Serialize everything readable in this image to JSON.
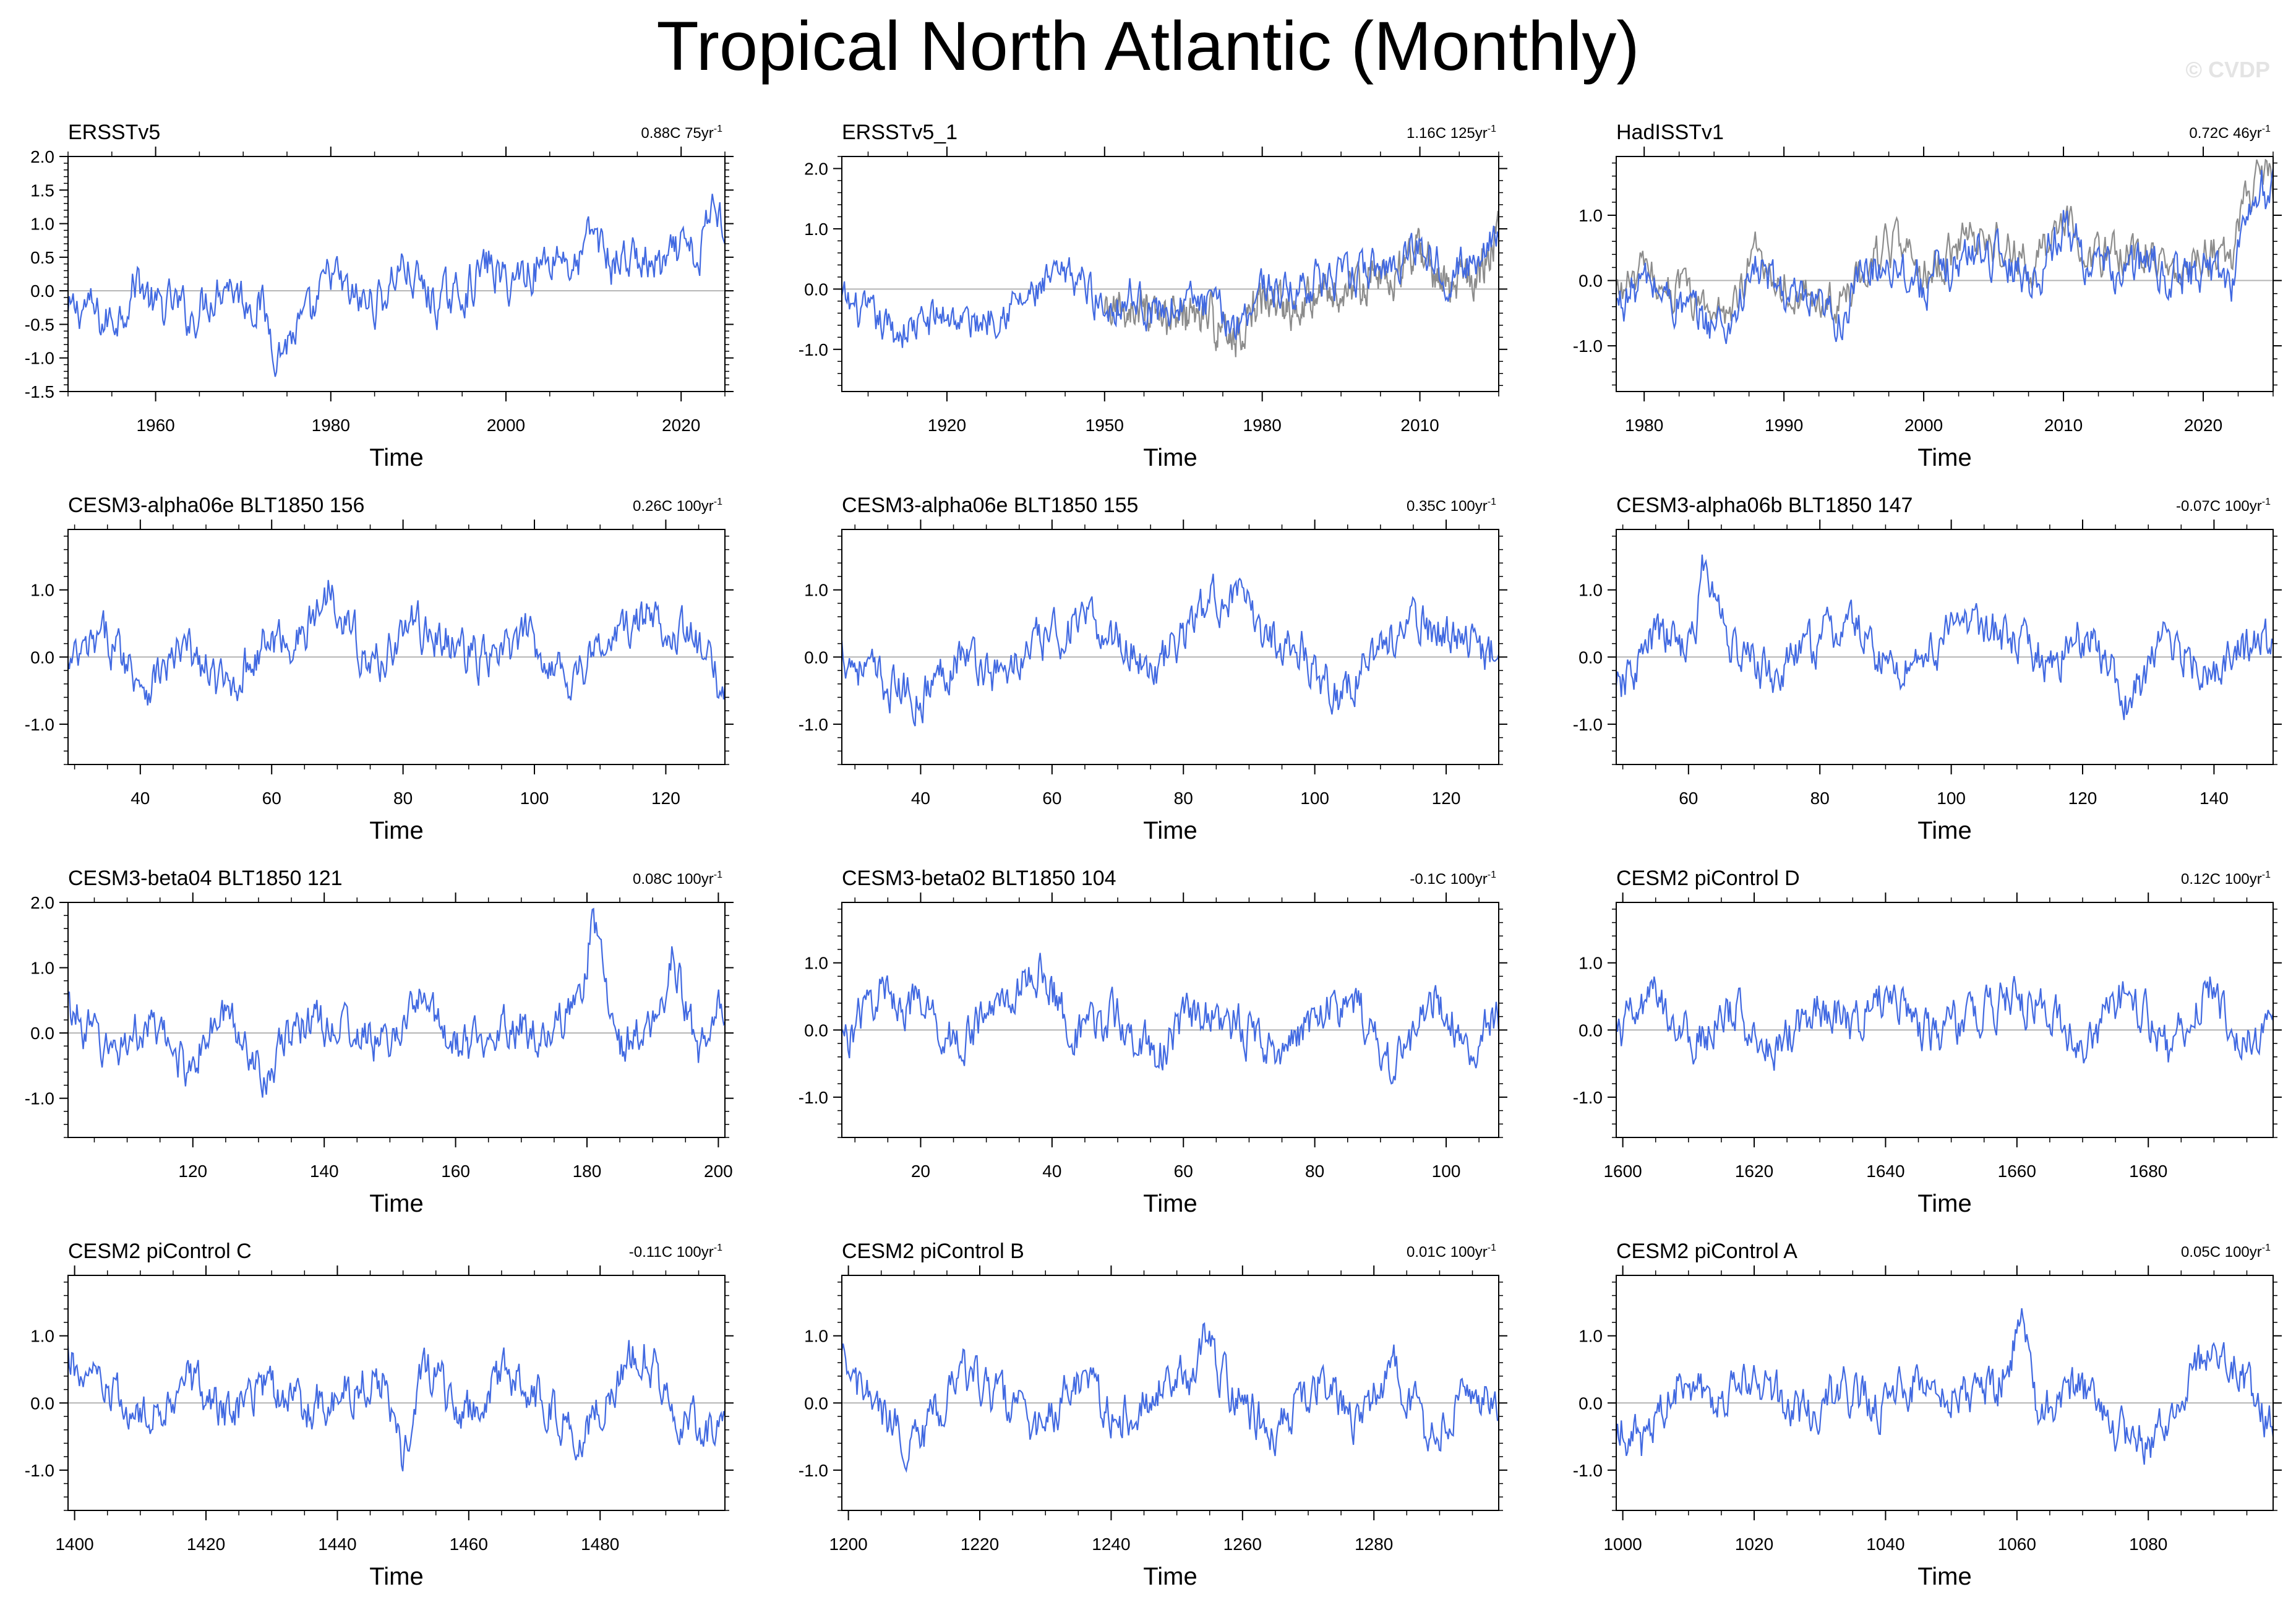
{
  "title": "Tropical North Atlantic (Monthly)",
  "credit": "© CVDP",
  "colors": {
    "model": "#4169E1",
    "obs_ref": "#8c8c8c",
    "zero_line": "#b4b4b4",
    "axes": "#000000"
  },
  "chart_data": [
    {
      "type": "line",
      "title": "ERSSTv5",
      "trend_value": "0.88C 75yr",
      "trend_exp": "-1",
      "xlabel": "Time",
      "ylabel": "",
      "xlim": [
        1950,
        2025
      ],
      "ylim": [
        -1.5,
        2.0
      ],
      "xticks": [
        1960,
        1980,
        2000,
        2020
      ],
      "yticks": [
        -1.5,
        -1.0,
        -0.5,
        0.0,
        0.5,
        1.0,
        1.5,
        2.0
      ],
      "ytick_labels": [
        "-1.5",
        "-1.0",
        "-0.5",
        "0.0",
        "0.5",
        "1.0",
        "1.5",
        "2.0"
      ],
      "series": [
        {
          "x": [
            1950,
            1952,
            1954,
            1956,
            1958,
            1960,
            1962,
            1964,
            1966,
            1968,
            1970,
            1972,
            1974,
            1976,
            1978,
            1980,
            1982,
            1984,
            1986,
            1988,
            1990,
            1992,
            1994,
            1996,
            1998,
            2000,
            2002,
            2004,
            2006,
            2008,
            2010,
            2012,
            2014,
            2016,
            2018,
            2020,
            2022,
            2023,
            2024,
            2025
          ],
          "y": [
            -0.4,
            -0.2,
            -0.5,
            -0.3,
            0.2,
            -0.3,
            -0.2,
            -0.4,
            -0.1,
            0.2,
            -0.1,
            -0.2,
            -0.9,
            -0.6,
            -0.4,
            0.3,
            -0.1,
            -0.2,
            -0.1,
            0.4,
            0.1,
            -0.2,
            -0.1,
            0.1,
            0.4,
            0.1,
            0.3,
            0.4,
            0.6,
            0.3,
            0.9,
            0.4,
            0.5,
            0.4,
            0.3,
            0.6,
            0.4,
            1.0,
            1.4,
            0.9
          ]
        }
      ]
    },
    {
      "type": "line",
      "title": "ERSSTv5_1",
      "trend_value": "1.16C 125yr",
      "trend_exp": "-1",
      "xlabel": "Time",
      "ylabel": "",
      "xlim": [
        1900,
        2025
      ],
      "ylim": [
        -1.7,
        2.2
      ],
      "xticks": [
        1920,
        1950,
        1980,
        2010
      ],
      "yticks": [
        -1.0,
        0.0,
        1.0,
        2.0
      ],
      "ytick_labels": [
        "-1.0",
        "0.0",
        "1.0",
        "2.0"
      ],
      "series": [
        {
          "x": [
            1900,
            1905,
            1910,
            1915,
            1920,
            1925,
            1930,
            1935,
            1940,
            1945,
            1950,
            1955,
            1960,
            1965,
            1970,
            1975,
            1980,
            1985,
            1990,
            1995,
            2000,
            2005,
            2010,
            2015,
            2020,
            2025
          ],
          "y": [
            -0.2,
            -0.5,
            -0.7,
            -0.6,
            -0.4,
            -0.6,
            -0.3,
            -0.2,
            0.1,
            0.2,
            -0.3,
            -0.1,
            -0.4,
            -0.2,
            -0.3,
            -0.6,
            0.1,
            -0.1,
            0.2,
            0.1,
            0.3,
            0.4,
            0.8,
            0.3,
            0.4,
            1.1
          ]
        },
        {
          "x": [
            1950,
            1955,
            1960,
            1965,
            1970,
            1975,
            1980,
            1985,
            1990,
            1995,
            2000,
            2005,
            2010,
            2015,
            2020,
            2025
          ],
          "y": [
            -0.5,
            -0.3,
            -0.6,
            -0.4,
            -0.5,
            -0.8,
            -0.1,
            -0.3,
            0.0,
            -0.1,
            0.1,
            0.2,
            0.6,
            0.1,
            0.2,
            0.9
          ]
        }
      ]
    },
    {
      "type": "line",
      "title": "HadISSTv1",
      "trend_value": "0.72C 46yr",
      "trend_exp": "-1",
      "xlabel": "Time",
      "ylabel": "",
      "xlim": [
        1978,
        2025
      ],
      "ylim": [
        -1.7,
        1.9
      ],
      "xticks": [
        1980,
        1990,
        2000,
        2010,
        2020
      ],
      "yticks": [
        -1.0,
        0.0,
        1.0
      ],
      "ytick_labels": [
        "-1.0",
        "0.0",
        "1.0"
      ],
      "series": [
        {
          "x": [
            1978,
            1980,
            1982,
            1984,
            1986,
            1988,
            1990,
            1992,
            1994,
            1996,
            1998,
            2000,
            2002,
            2004,
            2006,
            2008,
            2010,
            2012,
            2014,
            2016,
            2018,
            2020,
            2022,
            2023,
            2024,
            2025
          ],
          "y": [
            -0.4,
            0.0,
            -0.3,
            -0.6,
            -0.7,
            0.2,
            -0.2,
            -0.5,
            -0.6,
            0.2,
            0.3,
            -0.1,
            0.2,
            0.5,
            0.3,
            0.0,
            0.9,
            0.2,
            0.1,
            0.3,
            0.0,
            0.2,
            0.0,
            0.9,
            1.4,
            1.3
          ]
        },
        {
          "x": [
            1978,
            1980,
            1982,
            1984,
            1986,
            1988,
            1990,
            1992,
            1994,
            1996,
            1998,
            2000,
            2002,
            2004,
            2006,
            2008,
            2010,
            2012,
            2014,
            2016,
            2018,
            2020,
            2022,
            2023,
            2024,
            2025
          ],
          "y": [
            -0.2,
            0.1,
            -0.1,
            -0.4,
            -0.5,
            0.4,
            0.0,
            -0.3,
            -0.4,
            0.3,
            0.5,
            0.1,
            0.4,
            0.7,
            0.5,
            0.2,
            1.1,
            0.4,
            0.3,
            0.5,
            0.2,
            0.5,
            0.3,
            1.2,
            1.6,
            1.5
          ]
        }
      ]
    },
    {
      "type": "line",
      "title": "CESM3-alpha06e BLT1850 156",
      "trend_value": "0.26C 100yr",
      "trend_exp": "-1",
      "xlabel": "Time",
      "ylabel": "",
      "xlim": [
        29,
        129
      ],
      "ylim": [
        -1.6,
        1.9
      ],
      "xticks": [
        40,
        60,
        80,
        100,
        120
      ],
      "yticks": [
        -1.0,
        0.0,
        1.0
      ],
      "ytick_labels": [
        "-1.0",
        "0.0",
        "1.0"
      ],
      "series": [
        {
          "x": [
            29,
            35,
            41,
            47,
            53,
            59,
            65,
            69,
            75,
            81,
            87,
            93,
            99,
            105,
            111,
            117,
            123,
            129
          ],
          "y": [
            -0.2,
            0.3,
            -0.4,
            0.1,
            -0.5,
            0.2,
            0.3,
            1.1,
            -0.2,
            0.5,
            0.2,
            -0.1,
            0.3,
            -0.3,
            0.2,
            0.6,
            0.4,
            -0.5
          ]
        }
      ]
    },
    {
      "type": "line",
      "title": "CESM3-alpha06e BLT1850 155",
      "trend_value": "0.35C 100yr",
      "trend_exp": "-1",
      "xlabel": "Time",
      "ylabel": "",
      "xlim": [
        28,
        128
      ],
      "ylim": [
        -1.6,
        1.9
      ],
      "xticks": [
        40,
        60,
        80,
        100,
        120
      ],
      "yticks": [
        -1.0,
        0.0,
        1.0
      ],
      "ytick_labels": [
        "-1.0",
        "0.0",
        "1.0"
      ],
      "series": [
        {
          "x": [
            28,
            34,
            40,
            46,
            52,
            58,
            64,
            70,
            76,
            82,
            87,
            92,
            98,
            104,
            110,
            116,
            122,
            128
          ],
          "y": [
            0.1,
            -0.4,
            -0.6,
            0.1,
            -0.3,
            0.2,
            0.5,
            0.3,
            -0.2,
            0.6,
            1.0,
            0.4,
            0.1,
            -0.6,
            0.2,
            0.5,
            0.3,
            0.0
          ]
        }
      ]
    },
    {
      "type": "line",
      "title": "CESM3-alpha06b BLT1850 147",
      "trend_value": "-0.07C 100yr",
      "trend_exp": "-1",
      "xlabel": "Time",
      "ylabel": "",
      "xlim": [
        49,
        149
      ],
      "ylim": [
        -1.6,
        1.9
      ],
      "xticks": [
        60,
        80,
        100,
        120,
        140
      ],
      "yticks": [
        -1.0,
        0.0,
        1.0
      ],
      "ytick_labels": [
        "-1.0",
        "0.0",
        "1.0"
      ],
      "series": [
        {
          "x": [
            49,
            55,
            61,
            62,
            67,
            73,
            79,
            85,
            91,
            97,
            103,
            109,
            115,
            121,
            127,
            133,
            139,
            145,
            149
          ],
          "y": [
            -0.6,
            0.3,
            0.2,
            1.4,
            0.1,
            -0.3,
            0.2,
            0.5,
            -0.2,
            0.1,
            0.6,
            0.2,
            -0.1,
            0.4,
            -0.7,
            0.3,
            -0.2,
            0.1,
            0.2
          ]
        }
      ]
    },
    {
      "type": "line",
      "title": "CESM3-beta04 BLT1850 121",
      "trend_value": "0.08C 100yr",
      "trend_exp": "-1",
      "xlabel": "Time",
      "ylabel": "",
      "xlim": [
        101,
        201
      ],
      "ylim": [
        -1.6,
        2.0
      ],
      "xticks": [
        120,
        140,
        160,
        180,
        200
      ],
      "yticks": [
        -1.0,
        0.0,
        1.0,
        2.0
      ],
      "ytick_labels": [
        "-1.0",
        "0.0",
        "1.0",
        "2.0"
      ],
      "series": [
        {
          "x": [
            101,
            107,
            113,
            119,
            125,
            131,
            137,
            143,
            149,
            155,
            161,
            167,
            173,
            179,
            181,
            185,
            191,
            193,
            197,
            201
          ],
          "y": [
            0.4,
            -0.3,
            0.1,
            -0.5,
            0.3,
            -0.6,
            0.2,
            0.1,
            -0.2,
            0.5,
            -0.3,
            0.2,
            0.0,
            0.4,
            1.8,
            -0.2,
            0.1,
            1.2,
            -0.3,
            0.5
          ]
        }
      ]
    },
    {
      "type": "line",
      "title": "CESM3-beta02 BLT1850 104",
      "trend_value": "-0.1C 100yr",
      "trend_exp": "-1",
      "xlabel": "Time",
      "ylabel": "",
      "xlim": [
        8,
        108
      ],
      "ylim": [
        -1.6,
        1.9
      ],
      "xticks": [
        20,
        40,
        60,
        80,
        100
      ],
      "yticks": [
        -1.0,
        0.0,
        1.0
      ],
      "ytick_labels": [
        "-1.0",
        "0.0",
        "1.0"
      ],
      "series": [
        {
          "x": [
            8,
            14,
            20,
            26,
            32,
            38,
            44,
            50,
            56,
            62,
            68,
            74,
            80,
            86,
            92,
            98,
            104,
            108
          ],
          "y": [
            -0.2,
            0.6,
            0.3,
            -0.2,
            0.4,
            0.9,
            -0.1,
            0.2,
            -0.4,
            0.3,
            0.1,
            -0.3,
            0.2,
            0.4,
            -0.6,
            0.5,
            -0.2,
            0.2
          ]
        }
      ]
    },
    {
      "type": "line",
      "title": "CESM2 piControl D",
      "trend_value": "0.12C 100yr",
      "trend_exp": "-1",
      "xlabel": "Time",
      "ylabel": "",
      "xlim": [
        1599,
        1699
      ],
      "ylim": [
        -1.6,
        1.9
      ],
      "xticks": [
        1600,
        1620,
        1640,
        1660,
        1680
      ],
      "yticks": [
        -1.0,
        0.0,
        1.0
      ],
      "ytick_labels": [
        "-1.0",
        "0.0",
        "1.0"
      ],
      "series": [
        {
          "x": [
            1599,
            1605,
            1611,
            1617,
            1623,
            1629,
            1635,
            1641,
            1647,
            1653,
            1659,
            1665,
            1671,
            1677,
            1683,
            1689,
            1695,
            1699
          ],
          "y": [
            -0.1,
            0.5,
            -0.2,
            0.3,
            -0.3,
            0.4,
            0.1,
            0.6,
            -0.1,
            0.2,
            0.5,
            0.2,
            -0.2,
            0.6,
            -0.3,
            0.7,
            -0.2,
            -0.1
          ]
        }
      ]
    },
    {
      "type": "line",
      "title": "CESM2 piControl C",
      "trend_value": "-0.11C 100yr",
      "trend_exp": "-1",
      "xlabel": "Time",
      "ylabel": "",
      "xlim": [
        1399,
        1499
      ],
      "ylim": [
        -1.6,
        1.9
      ],
      "xticks": [
        1400,
        1420,
        1440,
        1460,
        1480
      ],
      "yticks": [
        -1.0,
        0.0,
        1.0
      ],
      "ytick_labels": [
        "-1.0",
        "0.0",
        "1.0"
      ],
      "series": [
        {
          "x": [
            1399,
            1405,
            1411,
            1417,
            1423,
            1429,
            1435,
            1441,
            1447,
            1450,
            1453,
            1459,
            1465,
            1471,
            1477,
            1483,
            1486,
            1492,
            1499
          ],
          "y": [
            0.6,
            0.1,
            -0.3,
            0.4,
            -0.2,
            0.3,
            -0.1,
            0.2,
            0.4,
            -0.9,
            0.7,
            -0.3,
            0.4,
            0.1,
            -0.5,
            0.3,
            0.9,
            -0.2,
            -0.5
          ]
        }
      ]
    },
    {
      "type": "line",
      "title": "CESM2 piControl B",
      "trend_value": "0.01C 100yr",
      "trend_exp": "-1",
      "xlabel": "Time",
      "ylabel": "",
      "xlim": [
        1199,
        1299
      ],
      "ylim": [
        -1.6,
        1.9
      ],
      "xticks": [
        1200,
        1220,
        1240,
        1260,
        1280
      ],
      "yticks": [
        -1.0,
        0.0,
        1.0
      ],
      "ytick_labels": [
        "-1.0",
        "0.0",
        "1.0"
      ],
      "series": [
        {
          "x": [
            1199,
            1205,
            1211,
            1217,
            1223,
            1229,
            1235,
            1241,
            1247,
            1253,
            1254,
            1259,
            1265,
            1271,
            1277,
            1283,
            1289,
            1295,
            1299
          ],
          "y": [
            0.5,
            -0.2,
            -0.6,
            0.5,
            0.1,
            -0.4,
            0.3,
            -0.3,
            0.2,
            0.5,
            0.9,
            0.1,
            -0.5,
            0.4,
            -0.2,
            0.5,
            -0.6,
            0.3,
            -0.2
          ]
        }
      ]
    },
    {
      "type": "line",
      "title": "CESM2 piControl A",
      "trend_value": "0.05C 100yr",
      "trend_exp": "-1",
      "xlabel": "Time",
      "ylabel": "",
      "xlim": [
        999,
        1099
      ],
      "ylim": [
        -1.6,
        1.9
      ],
      "xticks": [
        1000,
        1020,
        1040,
        1060,
        1080
      ],
      "yticks": [
        -1.0,
        0.0,
        1.0
      ],
      "ytick_labels": [
        "-1.0",
        "0.0",
        "1.0"
      ],
      "series": [
        {
          "x": [
            999,
            1003,
            1009,
            1015,
            1021,
            1027,
            1033,
            1039,
            1045,
            1051,
            1057,
            1061,
            1063,
            1069,
            1075,
            1081,
            1087,
            1093,
            1099
          ],
          "y": [
            -0.3,
            -0.6,
            0.4,
            0.1,
            0.3,
            -0.2,
            0.2,
            -0.1,
            0.4,
            0.1,
            0.2,
            1.3,
            -0.2,
            0.3,
            -0.4,
            -0.6,
            0.5,
            0.6,
            -0.4
          ]
        }
      ]
    }
  ]
}
